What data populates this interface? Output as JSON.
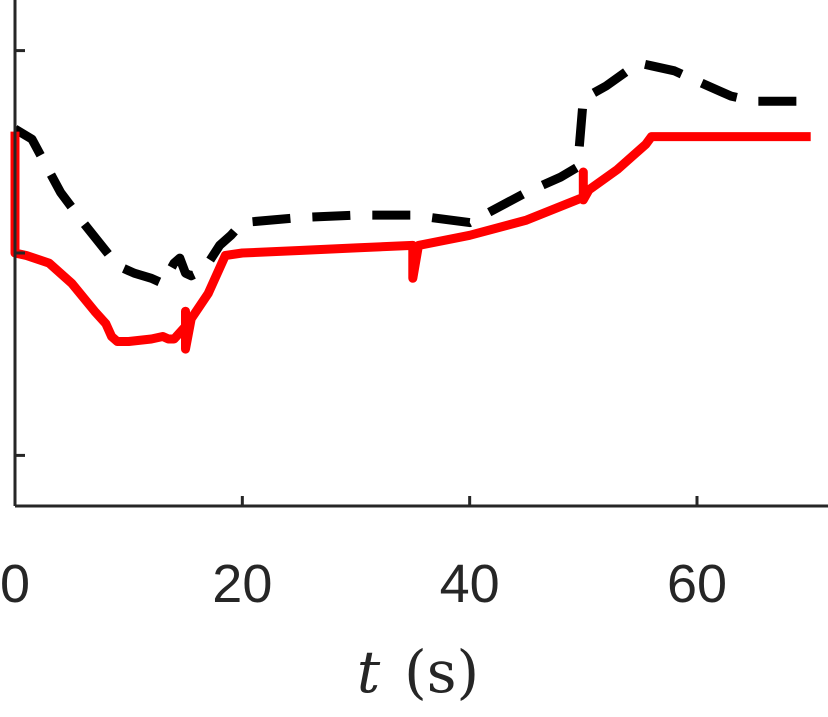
{
  "chart_data": {
    "type": "line",
    "xlabel_var": "t",
    "xlabel_unit": "(s)",
    "xlim": [
      0,
      71
    ],
    "ylim": [
      0,
      1
    ],
    "x_ticks": [
      0,
      20,
      40,
      60
    ],
    "x_tick_labels": [
      "0",
      "20",
      "40",
      "60"
    ],
    "y_ticks": [
      0.1,
      0.5,
      0.9
    ],
    "grid": false,
    "legend": "none",
    "series": [
      {
        "style": "dashed",
        "color": "#000000",
        "x": [
          0,
          1.5,
          4,
          6,
          8.5,
          9,
          10.5,
          12,
          13,
          14,
          14.5,
          15,
          15.5,
          16,
          17,
          18,
          19,
          20,
          25,
          30,
          35,
          40,
          45,
          48,
          49.5,
          50,
          52,
          54.5,
          55,
          56,
          58,
          60,
          62,
          63,
          64,
          65,
          70
        ],
        "y": [
          0.745,
          0.725,
          0.62,
          0.56,
          0.49,
          0.475,
          0.46,
          0.45,
          0.44,
          0.48,
          0.49,
          0.46,
          0.455,
          0.46,
          0.48,
          0.515,
          0.535,
          0.56,
          0.57,
          0.575,
          0.575,
          0.56,
          0.62,
          0.65,
          0.67,
          0.805,
          0.83,
          0.87,
          0.875,
          0.87,
          0.86,
          0.84,
          0.82,
          0.81,
          0.805,
          0.8,
          0.8
        ]
      },
      {
        "style": "solid",
        "color": "#ff0000",
        "x": [
          0,
          0,
          0,
          1,
          3,
          5,
          7,
          8,
          8.5,
          9,
          10,
          12,
          13,
          13.5,
          14,
          15,
          15,
          15,
          15.5,
          17,
          18.5,
          20,
          25,
          30,
          35,
          35,
          35,
          35.5,
          40,
          45,
          50,
          50,
          50,
          50.5,
          53,
          55.5,
          56,
          60,
          65,
          70
        ],
        "y": [
          0.74,
          0.68,
          0.5,
          0.495,
          0.48,
          0.44,
          0.385,
          0.36,
          0.335,
          0.325,
          0.325,
          0.33,
          0.335,
          0.33,
          0.33,
          0.355,
          0.385,
          0.31,
          0.37,
          0.42,
          0.495,
          0.5,
          0.505,
          0.51,
          0.515,
          0.515,
          0.45,
          0.515,
          0.535,
          0.565,
          0.61,
          0.66,
          0.605,
          0.625,
          0.665,
          0.715,
          0.73,
          0.73,
          0.73,
          0.73
        ]
      }
    ]
  }
}
